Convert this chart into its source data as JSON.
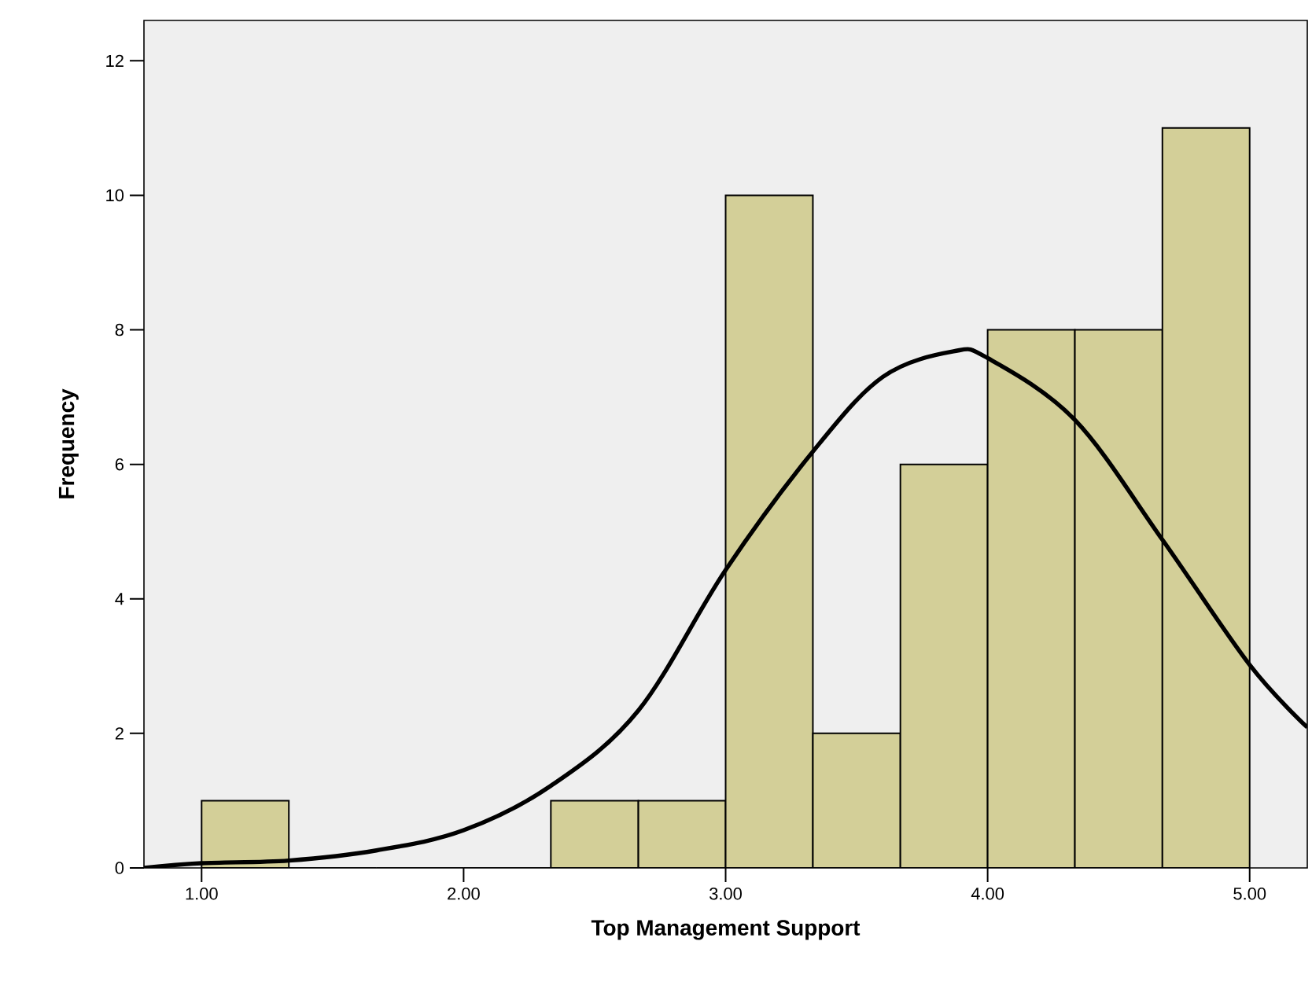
{
  "chart_data": {
    "type": "histogram",
    "xlabel": "Top Management Support",
    "ylabel": "Frequency",
    "xlim": [
      0.78,
      5.22
    ],
    "ylim": [
      0,
      12.6
    ],
    "xticks": [
      {
        "value": 1,
        "label": "1.00"
      },
      {
        "value": 2,
        "label": "2.00"
      },
      {
        "value": 3,
        "label": "3.00"
      },
      {
        "value": 4,
        "label": "4.00"
      },
      {
        "value": 5,
        "label": "5.00"
      }
    ],
    "yticks": [
      0,
      2,
      4,
      6,
      8,
      10,
      12
    ],
    "grid": false,
    "series": [
      {
        "color": "#d3cf98",
        "bins": [
          1.0,
          1.333,
          1.667,
          2.0,
          2.333,
          2.667,
          3.0,
          3.333,
          3.667,
          4.0,
          4.333,
          4.667,
          5.0
        ],
        "values": [
          1,
          0,
          0,
          0,
          1,
          1,
          10,
          2,
          6,
          8,
          8,
          11
        ]
      },
      {
        "type": "line",
        "color": "#000000",
        "x": [
          0.78,
          1.0,
          1.333,
          1.667,
          2.0,
          2.333,
          2.667,
          3.0,
          3.333,
          3.6,
          3.87,
          4.0,
          4.333,
          4.667,
          5.0,
          5.22
        ],
        "values": [
          0.0,
          0.07,
          0.11,
          0.26,
          0.56,
          1.22,
          2.34,
          4.43,
          6.19,
          7.3,
          7.68,
          7.58,
          6.66,
          4.88,
          3.02,
          2.09
        ]
      }
    ]
  }
}
